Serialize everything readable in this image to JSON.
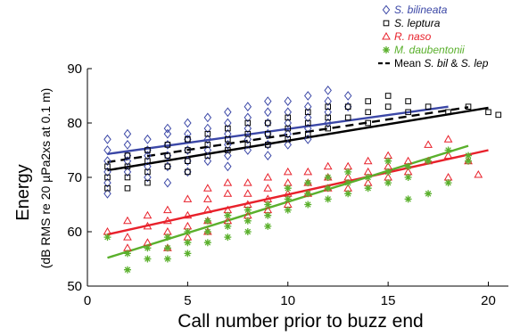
{
  "chart_data": {
    "type": "scatter",
    "xlabel": "Call number prior to buzz end",
    "ylabel": "Energy",
    "ylabel_sub": "(dB RMS re 20 µPa2xs at 0.1 m)",
    "xlim": [
      0,
      21
    ],
    "ylim": [
      50,
      90
    ],
    "xticks": [
      0,
      5,
      10,
      15,
      20
    ],
    "yticks": [
      50,
      60,
      70,
      80,
      90
    ],
    "grid": false,
    "legend_position": "top-right",
    "series": [
      {
        "name": "S. bilineata",
        "legend_prefix": "",
        "legend_species": "S. bilineata",
        "marker": "diamond",
        "color": "#3b47a6",
        "points": [
          [
            1,
            77
          ],
          [
            1,
            75
          ],
          [
            1,
            73
          ],
          [
            1,
            71
          ],
          [
            1,
            69
          ],
          [
            1,
            67
          ],
          [
            2,
            78
          ],
          [
            2,
            76
          ],
          [
            2,
            74
          ],
          [
            2,
            73
          ],
          [
            2,
            71
          ],
          [
            3,
            77
          ],
          [
            3,
            75
          ],
          [
            3,
            74
          ],
          [
            3,
            72
          ],
          [
            3,
            70
          ],
          [
            4,
            79
          ],
          [
            4,
            78
          ],
          [
            4,
            76
          ],
          [
            4,
            74
          ],
          [
            4,
            72
          ],
          [
            4,
            69
          ],
          [
            5,
            80
          ],
          [
            5,
            78
          ],
          [
            5,
            77
          ],
          [
            5,
            75
          ],
          [
            5,
            73
          ],
          [
            5,
            71
          ],
          [
            6,
            81
          ],
          [
            6,
            79
          ],
          [
            6,
            77
          ],
          [
            6,
            75
          ],
          [
            6,
            73
          ],
          [
            7,
            82
          ],
          [
            7,
            80
          ],
          [
            7,
            78
          ],
          [
            7,
            76
          ],
          [
            7,
            74
          ],
          [
            7,
            72
          ],
          [
            8,
            83
          ],
          [
            8,
            81
          ],
          [
            8,
            79
          ],
          [
            8,
            77
          ],
          [
            8,
            75
          ],
          [
            9,
            84
          ],
          [
            9,
            82
          ],
          [
            9,
            80
          ],
          [
            9,
            78
          ],
          [
            9,
            76
          ],
          [
            9,
            74
          ],
          [
            10,
            84
          ],
          [
            10,
            82
          ],
          [
            10,
            80
          ],
          [
            10,
            78
          ],
          [
            10,
            76
          ],
          [
            11,
            85
          ],
          [
            11,
            83
          ],
          [
            11,
            81
          ],
          [
            11,
            79
          ],
          [
            11,
            77
          ],
          [
            12,
            86
          ],
          [
            12,
            84
          ],
          [
            12,
            82
          ],
          [
            12,
            80
          ],
          [
            13,
            85
          ],
          [
            13,
            83
          ]
        ]
      },
      {
        "name": "S. leptura",
        "legend_prefix": "",
        "legend_species": "S. leptura",
        "marker": "square",
        "color": "#000000",
        "points": [
          [
            1,
            72
          ],
          [
            1,
            70
          ],
          [
            1,
            68
          ],
          [
            2,
            74
          ],
          [
            2,
            72
          ],
          [
            2,
            70
          ],
          [
            2,
            68
          ],
          [
            3,
            75
          ],
          [
            3,
            73
          ],
          [
            3,
            71
          ],
          [
            3,
            69
          ],
          [
            4,
            76
          ],
          [
            4,
            74
          ],
          [
            4,
            72
          ],
          [
            5,
            77
          ],
          [
            5,
            75
          ],
          [
            5,
            73
          ],
          [
            5,
            71
          ],
          [
            6,
            78
          ],
          [
            6,
            76
          ],
          [
            6,
            74
          ],
          [
            7,
            79
          ],
          [
            7,
            77
          ],
          [
            7,
            75
          ],
          [
            8,
            80
          ],
          [
            8,
            78
          ],
          [
            8,
            76
          ],
          [
            9,
            80
          ],
          [
            9,
            78
          ],
          [
            9,
            76
          ],
          [
            10,
            81
          ],
          [
            10,
            79
          ],
          [
            10,
            77
          ],
          [
            11,
            82
          ],
          [
            11,
            80
          ],
          [
            11,
            78
          ],
          [
            12,
            83
          ],
          [
            12,
            81
          ],
          [
            12,
            79
          ],
          [
            13,
            83
          ],
          [
            13,
            81
          ],
          [
            14,
            84
          ],
          [
            14,
            82
          ],
          [
            14,
            80
          ],
          [
            15,
            85
          ],
          [
            15,
            83
          ],
          [
            16,
            84
          ],
          [
            16,
            82
          ],
          [
            17,
            83
          ],
          [
            18,
            82
          ],
          [
            19,
            83
          ],
          [
            20,
            82
          ],
          [
            20.5,
            81.5
          ]
        ]
      },
      {
        "name": "R. naso",
        "legend_prefix": "",
        "legend_species": "R. naso",
        "marker": "triangle",
        "color": "#e8212b",
        "points": [
          [
            1,
            60
          ],
          [
            2,
            62
          ],
          [
            2,
            59
          ],
          [
            2,
            57
          ],
          [
            3,
            63
          ],
          [
            3,
            61
          ],
          [
            3,
            58
          ],
          [
            4,
            64
          ],
          [
            4,
            62
          ],
          [
            4,
            60
          ],
          [
            4,
            57
          ],
          [
            5,
            66
          ],
          [
            5,
            63
          ],
          [
            5,
            61
          ],
          [
            5,
            59
          ],
          [
            6,
            68
          ],
          [
            6,
            66
          ],
          [
            6,
            64
          ],
          [
            6,
            62
          ],
          [
            6,
            60
          ],
          [
            7,
            69
          ],
          [
            7,
            67
          ],
          [
            7,
            64
          ],
          [
            7,
            62
          ],
          [
            8,
            69
          ],
          [
            8,
            67
          ],
          [
            8,
            65
          ],
          [
            8,
            63
          ],
          [
            9,
            70
          ],
          [
            9,
            68
          ],
          [
            9,
            66
          ],
          [
            9,
            64
          ],
          [
            10,
            71
          ],
          [
            10,
            69
          ],
          [
            10,
            67
          ],
          [
            10,
            65
          ],
          [
            11,
            71
          ],
          [
            11,
            69
          ],
          [
            11,
            67
          ],
          [
            12,
            72
          ],
          [
            12,
            70
          ],
          [
            12,
            68
          ],
          [
            13,
            72
          ],
          [
            13,
            70
          ],
          [
            13,
            68
          ],
          [
            14,
            73
          ],
          [
            14,
            71
          ],
          [
            14,
            69
          ],
          [
            15,
            74
          ],
          [
            15,
            72
          ],
          [
            15,
            70
          ],
          [
            16,
            73
          ],
          [
            16,
            71
          ],
          [
            17,
            76
          ],
          [
            17,
            73
          ],
          [
            18,
            77
          ],
          [
            18,
            74
          ],
          [
            18,
            70
          ],
          [
            19,
            73
          ],
          [
            19.5,
            70.5
          ]
        ]
      },
      {
        "name": "M. daubentonii",
        "legend_prefix": "",
        "legend_species": "M. daubentonii",
        "marker": "star",
        "color": "#5ab02c",
        "points": [
          [
            1,
            59
          ],
          [
            2,
            56
          ],
          [
            2,
            53
          ],
          [
            3,
            57
          ],
          [
            3,
            55
          ],
          [
            4,
            59
          ],
          [
            4,
            57
          ],
          [
            4,
            55
          ],
          [
            5,
            60
          ],
          [
            5,
            58
          ],
          [
            5,
            56
          ],
          [
            6,
            62
          ],
          [
            6,
            60
          ],
          [
            6,
            58
          ],
          [
            7,
            63
          ],
          [
            7,
            61
          ],
          [
            7,
            59
          ],
          [
            8,
            64
          ],
          [
            8,
            62
          ],
          [
            8,
            60
          ],
          [
            9,
            65
          ],
          [
            9,
            63
          ],
          [
            9,
            61
          ],
          [
            10,
            66
          ],
          [
            10,
            64
          ],
          [
            10,
            68
          ],
          [
            11,
            67
          ],
          [
            11,
            65
          ],
          [
            11,
            69
          ],
          [
            12,
            68
          ],
          [
            12,
            66
          ],
          [
            12,
            70
          ],
          [
            13,
            69
          ],
          [
            13,
            67
          ],
          [
            13,
            71
          ],
          [
            14,
            70
          ],
          [
            14,
            68
          ],
          [
            15,
            73
          ],
          [
            15,
            71
          ],
          [
            15,
            69
          ],
          [
            16,
            72
          ],
          [
            16,
            70
          ],
          [
            16,
            66
          ],
          [
            17,
            73
          ],
          [
            17,
            67
          ],
          [
            18,
            75
          ],
          [
            18,
            69
          ],
          [
            19,
            74
          ],
          [
            19,
            73
          ]
        ]
      }
    ],
    "fit_lines": [
      {
        "name": "S. bilineata",
        "color": "#3b47a6",
        "dashed": false,
        "x": [
          1,
          18
        ],
        "y": [
          74.3,
          83.0
        ]
      },
      {
        "name": "S. leptura",
        "color": "#000000",
        "dashed": false,
        "x": [
          1,
          20
        ],
        "y": [
          71.3,
          82.8
        ]
      },
      {
        "name": "Mean S. bil & S. lep",
        "color": "#000000",
        "dashed": true,
        "x": [
          1,
          19
        ],
        "y": [
          72.8,
          82.9
        ]
      },
      {
        "name": "R. naso",
        "color": "#e8212b",
        "dashed": false,
        "x": [
          1,
          20
        ],
        "y": [
          59.5,
          75.0
        ]
      },
      {
        "name": "M. daubentonii",
        "color": "#5ab02c",
        "dashed": false,
        "x": [
          1,
          19
        ],
        "y": [
          55.2,
          75.8
        ]
      }
    ],
    "legend_mean": {
      "prefix": "Mean ",
      "italic1": "S. bil",
      "mid": " & ",
      "italic2": "S. lep"
    }
  }
}
